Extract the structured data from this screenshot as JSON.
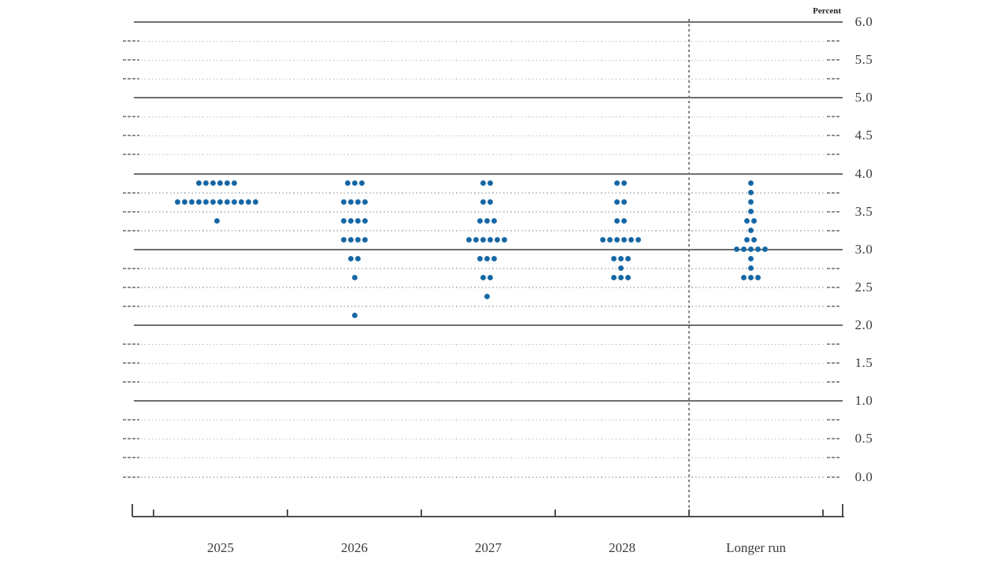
{
  "unit_label": "Percent",
  "colors": {
    "dot": "#1b6ca8",
    "solid_gridline": "#6e6e6e",
    "dotted_gridline": "#c3c3c3",
    "axis": "#4f4f4f",
    "text": "#3b3b3b"
  },
  "chart_data": {
    "type": "scatter",
    "subtype": "fomc-dot-plot",
    "title": "",
    "unit": "Percent",
    "xlabel": "",
    "ylabel": "Percent",
    "ylim": [
      0.0,
      6.0
    ],
    "y_label_step": 0.5,
    "y_grid_step": 0.25,
    "grid": "solid lines at integers 1-6, dotted lines at quarter values and 0.0",
    "legend": "none",
    "y_tick_labels": [
      "6.0",
      "5.5",
      "5.0",
      "4.5",
      "4.0",
      "3.5",
      "3.0",
      "2.5",
      "2.0",
      "1.5",
      "1.0",
      "0.5",
      "0.0"
    ],
    "categories": [
      "2025",
      "2026",
      "2027",
      "2028",
      "Longer run"
    ],
    "series": [
      {
        "name": "2025",
        "dots": [
          {
            "value": 3.875,
            "count": 6
          },
          {
            "value": 3.625,
            "count": 12
          },
          {
            "value": 3.375,
            "count": 1
          }
        ]
      },
      {
        "name": "2026",
        "dots": [
          {
            "value": 3.875,
            "count": 3
          },
          {
            "value": 3.625,
            "count": 4
          },
          {
            "value": 3.375,
            "count": 4
          },
          {
            "value": 3.125,
            "count": 4
          },
          {
            "value": 2.875,
            "count": 2
          },
          {
            "value": 2.625,
            "count": 1
          },
          {
            "value": 2.125,
            "count": 1
          }
        ]
      },
      {
        "name": "2027",
        "dots": [
          {
            "value": 3.875,
            "count": 2
          },
          {
            "value": 3.625,
            "count": 2
          },
          {
            "value": 3.375,
            "count": 3
          },
          {
            "value": 3.125,
            "count": 6
          },
          {
            "value": 2.875,
            "count": 3
          },
          {
            "value": 2.625,
            "count": 2
          },
          {
            "value": 2.375,
            "count": 1
          }
        ]
      },
      {
        "name": "2028",
        "dots": [
          {
            "value": 3.875,
            "count": 2
          },
          {
            "value": 3.625,
            "count": 2
          },
          {
            "value": 3.375,
            "count": 2
          },
          {
            "value": 3.125,
            "count": 6
          },
          {
            "value": 2.875,
            "count": 3
          },
          {
            "value": 2.75,
            "count": 1
          },
          {
            "value": 2.625,
            "count": 3
          }
        ]
      },
      {
        "name": "Longer run",
        "dots": [
          {
            "value": 3.875,
            "count": 1
          },
          {
            "value": 3.75,
            "count": 1
          },
          {
            "value": 3.625,
            "count": 1
          },
          {
            "value": 3.5,
            "count": 1
          },
          {
            "value": 3.375,
            "count": 2
          },
          {
            "value": 3.25,
            "count": 1
          },
          {
            "value": 3.125,
            "count": 2
          },
          {
            "value": 3.0,
            "count": 5
          },
          {
            "value": 2.875,
            "count": 1
          },
          {
            "value": 2.75,
            "count": 1
          },
          {
            "value": 2.625,
            "count": 3
          }
        ]
      }
    ]
  }
}
